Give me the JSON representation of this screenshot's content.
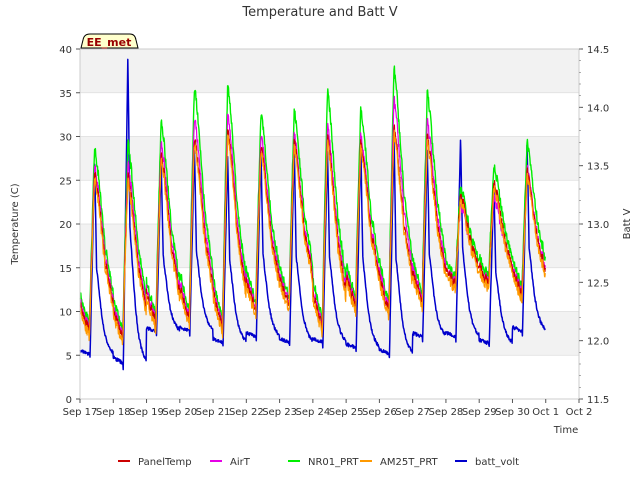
{
  "chart_data": {
    "type": "line",
    "title": "Temperature and Batt V",
    "station_label": "EE_met",
    "xlabel": "Time",
    "ylabel_left": "Temperature (C)",
    "ylabel_right": "Batt V",
    "xlim": [
      0,
      15
    ],
    "x_ticks": [
      {
        "x": 0,
        "label": "Sep 17"
      },
      {
        "x": 1,
        "label": "Sep 18"
      },
      {
        "x": 2,
        "label": "Sep 19"
      },
      {
        "x": 3,
        "label": "Sep 20"
      },
      {
        "x": 4,
        "label": "Sep 21"
      },
      {
        "x": 5,
        "label": "Sep 22"
      },
      {
        "x": 6,
        "label": "Sep 23"
      },
      {
        "x": 7,
        "label": "Sep 24"
      },
      {
        "x": 8,
        "label": "Sep 25"
      },
      {
        "x": 9,
        "label": "Sep 26"
      },
      {
        "x": 10,
        "label": "Sep 27"
      },
      {
        "x": 11,
        "label": "Sep 28"
      },
      {
        "x": 12,
        "label": "Sep 29"
      },
      {
        "x": 13,
        "label": "Sep 30"
      },
      {
        "x": 14,
        "label": "Oct 1"
      },
      {
        "x": 15,
        "label": "Oct 2"
      }
    ],
    "ylim_left": [
      0,
      40
    ],
    "y_ticks_left": [
      0,
      5,
      10,
      15,
      20,
      25,
      30,
      35,
      40
    ],
    "ylim_right": [
      11.5,
      14.5
    ],
    "y_ticks_right": [
      "11.5",
      "12.0",
      "12.5",
      "13.0",
      "13.5",
      "14.0",
      "14.5"
    ],
    "grid": true,
    "legend_position": "bottom",
    "days": [
      {
        "min": 7.5,
        "max": 25.5,
        "ng": 28.0,
        "ag": 26.5,
        "ms": 26.0,
        "bmin": 11.85,
        "bmax": 13.55
      },
      {
        "min": 6.8,
        "max": 26.0,
        "ng": 28.5,
        "ag": 26.5,
        "ms": 25.5,
        "bmin": 11.75,
        "bmax": 14.45
      },
      {
        "min": 8.5,
        "max": 28.0,
        "ng": 31.0,
        "ag": 29.0,
        "ms": 28.0,
        "bmin": 12.05,
        "bmax": 13.55
      },
      {
        "min": 9.0,
        "max": 30.5,
        "ng": 35.0,
        "ag": 32.0,
        "ms": 30.0,
        "bmin": 12.05,
        "bmax": 13.65
      },
      {
        "min": 8.0,
        "max": 31.0,
        "ng": 35.3,
        "ag": 32.5,
        "ms": 31.0,
        "bmin": 11.95,
        "bmax": 13.6
      },
      {
        "min": 10.0,
        "max": 29.0,
        "ng": 32.0,
        "ag": 30.0,
        "ms": 29.0,
        "bmin": 12.0,
        "bmax": 13.65
      },
      {
        "min": 10.5,
        "max": 29.5,
        "ng": 32.2,
        "ag": 30.0,
        "ms": 29.5,
        "bmin": 11.95,
        "bmax": 13.65
      },
      {
        "min": 8.0,
        "max": 30.0,
        "ng": 34.5,
        "ag": 31.0,
        "ms": 30.0,
        "bmin": 11.95,
        "bmax": 13.65
      },
      {
        "min": 10.5,
        "max": 29.5,
        "ng": 32.5,
        "ag": 30.0,
        "ms": 29.5,
        "bmin": 11.9,
        "bmax": 13.7
      },
      {
        "min": 10.0,
        "max": 30.5,
        "ng": 37.0,
        "ag": 34.0,
        "ms": 31.0,
        "bmin": 11.85,
        "bmax": 13.75
      },
      {
        "min": 11.0,
        "max": 30.0,
        "ng": 34.3,
        "ag": 31.5,
        "ms": 30.0,
        "bmin": 12.0,
        "bmax": 13.65
      },
      {
        "min": 13.0,
        "max": 22.0,
        "ng": 23.5,
        "ag": 22.0,
        "ms": 23.5,
        "bmin": 12.0,
        "bmax": 13.75
      },
      {
        "min": 13.0,
        "max": 24.0,
        "ng": 26.0,
        "ag": 23.0,
        "ms": 25.0,
        "bmin": 11.95,
        "bmax": 13.35
      },
      {
        "min": 12.0,
        "max": 25.0,
        "ng": 28.5,
        "ag": 26.0,
        "ms": 26.0,
        "bmin": 12.05,
        "bmax": 13.7
      }
    ],
    "end_x": 14.35,
    "series": [
      {
        "name": "PanelTemp",
        "color": "#cc0000",
        "width": 1.2
      },
      {
        "name": "AirT",
        "color": "#e600e6",
        "width": 1.2
      },
      {
        "name": "NR01_PRT",
        "color": "#00ee00",
        "width": 1.4
      },
      {
        "name": "AM25T_PRT",
        "color": "#ff9900",
        "width": 1.2
      },
      {
        "name": "batt_volt",
        "color": "#0000cc",
        "width": 1.5
      }
    ]
  }
}
